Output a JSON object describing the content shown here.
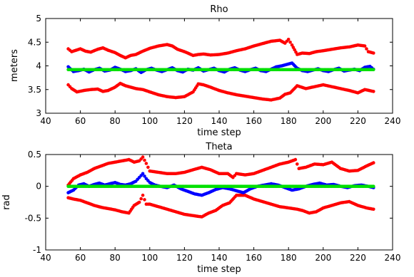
{
  "chart_data": [
    {
      "type": "scatter",
      "title": "Rho",
      "xlabel": "time step",
      "ylabel": "meters",
      "xlim": [
        40,
        240
      ],
      "ylim": [
        3,
        5
      ],
      "xticks": [
        40,
        60,
        80,
        100,
        120,
        140,
        160,
        180,
        200,
        220,
        240
      ],
      "yticks": [
        3,
        3.5,
        4,
        4.5,
        5
      ],
      "ytick_labels": [
        "3",
        "3.5",
        "4",
        "4.5",
        "5"
      ],
      "grid": false,
      "series": [
        {
          "color": "#ff0000",
          "x": [
            53,
            55,
            60,
            63,
            66,
            70,
            73,
            76,
            80,
            83,
            86,
            89,
            92,
            96,
            100,
            105,
            110,
            113,
            116,
            120,
            125,
            128,
            131,
            135,
            140,
            145,
            150,
            155,
            160,
            165,
            170,
            175,
            178,
            180,
            182,
            185,
            188,
            192,
            196,
            200,
            205,
            210,
            215,
            220,
            224,
            226,
            229
          ],
          "y": [
            4.36,
            4.3,
            4.36,
            4.31,
            4.29,
            4.35,
            4.38,
            4.33,
            4.28,
            4.22,
            4.17,
            4.22,
            4.24,
            4.31,
            4.37,
            4.42,
            4.45,
            4.42,
            4.35,
            4.3,
            4.22,
            4.24,
            4.25,
            4.23,
            4.24,
            4.27,
            4.32,
            4.36,
            4.42,
            4.47,
            4.52,
            4.54,
            4.48,
            4.56,
            4.44,
            4.24,
            4.27,
            4.26,
            4.3,
            4.32,
            4.35,
            4.38,
            4.4,
            4.44,
            4.42,
            4.3,
            4.27
          ]
        },
        {
          "color": "#ff0000",
          "x": [
            53,
            55,
            58,
            62,
            66,
            70,
            73,
            76,
            80,
            83,
            86,
            89,
            92,
            96,
            100,
            105,
            110,
            115,
            120,
            125,
            128,
            131,
            135,
            140,
            145,
            150,
            155,
            160,
            165,
            170,
            175,
            178,
            181,
            185,
            190,
            195,
            200,
            205,
            210,
            215,
            220,
            224,
            229
          ],
          "y": [
            3.6,
            3.52,
            3.45,
            3.48,
            3.5,
            3.51,
            3.46,
            3.48,
            3.55,
            3.63,
            3.58,
            3.55,
            3.52,
            3.5,
            3.45,
            3.39,
            3.35,
            3.33,
            3.35,
            3.45,
            3.62,
            3.6,
            3.55,
            3.48,
            3.43,
            3.39,
            3.36,
            3.33,
            3.3,
            3.28,
            3.32,
            3.4,
            3.43,
            3.58,
            3.52,
            3.56,
            3.6,
            3.56,
            3.52,
            3.48,
            3.43,
            3.5,
            3.46
          ]
        },
        {
          "color": "#0000ff",
          "x": [
            53,
            56,
            59,
            62,
            65,
            68,
            71,
            74,
            77,
            80,
            83,
            86,
            89,
            92,
            95,
            98,
            101,
            104,
            107,
            110,
            113,
            116,
            119,
            122,
            125,
            128,
            131,
            134,
            137,
            140,
            143,
            146,
            149,
            152,
            155,
            158,
            161,
            164,
            167,
            170,
            173,
            176,
            179,
            182,
            185,
            188,
            191,
            194,
            197,
            200,
            203,
            206,
            209,
            212,
            215,
            218,
            221,
            224,
            227,
            229
          ],
          "y": [
            3.98,
            3.88,
            3.9,
            3.93,
            3.87,
            3.92,
            3.95,
            3.89,
            3.91,
            3.97,
            3.93,
            3.88,
            3.9,
            3.94,
            3.86,
            3.92,
            3.95,
            3.91,
            3.88,
            3.92,
            3.96,
            3.9,
            3.87,
            3.93,
            3.91,
            3.96,
            3.89,
            3.92,
            3.95,
            3.9,
            3.87,
            3.93,
            3.96,
            3.91,
            3.88,
            3.92,
            3.95,
            3.9,
            3.88,
            3.93,
            3.98,
            4.0,
            4.03,
            4.06,
            3.95,
            3.9,
            3.88,
            3.91,
            3.94,
            3.9,
            3.88,
            3.92,
            3.95,
            3.89,
            3.91,
            3.93,
            3.9,
            3.97,
            3.99,
            3.93
          ]
        },
        {
          "color": "#00e000",
          "x": [
            53,
            229
          ],
          "y": [
            3.92,
            3.92
          ]
        }
      ]
    },
    {
      "type": "scatter",
      "title": "Theta",
      "xlabel": "time step",
      "ylabel": "rad",
      "xlim": [
        40,
        240
      ],
      "ylim": [
        -1,
        0.5
      ],
      "xticks": [
        40,
        60,
        80,
        100,
        120,
        140,
        160,
        180,
        200,
        220,
        240
      ],
      "yticks": [
        -1,
        -0.5,
        0,
        0.5
      ],
      "ytick_labels": [
        "-1",
        "-0.5",
        "0",
        "0.5"
      ],
      "grid": false,
      "series": [
        {
          "color": "#ff0000",
          "x": [
            53,
            56,
            60,
            64,
            68,
            72,
            76,
            80,
            84,
            88,
            91,
            94,
            96,
            98,
            100,
            105,
            110,
            115,
            120,
            125,
            130,
            135,
            140,
            145,
            148,
            150,
            155,
            160,
            165,
            170,
            175,
            180,
            184,
            186,
            190,
            195,
            200,
            205,
            210,
            215,
            220,
            225,
            229
          ],
          "y": [
            0.02,
            0.12,
            0.18,
            0.22,
            0.28,
            0.32,
            0.36,
            0.38,
            0.4,
            0.42,
            0.38,
            0.4,
            0.46,
            0.36,
            0.24,
            0.22,
            0.2,
            0.2,
            0.22,
            0.26,
            0.3,
            0.26,
            0.2,
            0.2,
            0.14,
            0.2,
            0.18,
            0.2,
            0.25,
            0.3,
            0.35,
            0.38,
            0.42,
            0.28,
            0.3,
            0.35,
            0.34,
            0.38,
            0.28,
            0.24,
            0.25,
            0.32,
            0.37
          ]
        },
        {
          "color": "#ff0000",
          "x": [
            53,
            56,
            60,
            64,
            68,
            72,
            76,
            80,
            84,
            88,
            91,
            94,
            96,
            98,
            100,
            105,
            110,
            115,
            120,
            125,
            130,
            134,
            138,
            142,
            146,
            150,
            155,
            160,
            165,
            170,
            175,
            180,
            185,
            188,
            192,
            196,
            200,
            205,
            210,
            215,
            220,
            225,
            229
          ],
          "y": [
            -0.18,
            -0.2,
            -0.22,
            -0.26,
            -0.3,
            -0.33,
            -0.35,
            -0.37,
            -0.4,
            -0.42,
            -0.3,
            -0.25,
            -0.14,
            -0.28,
            -0.28,
            -0.32,
            -0.36,
            -0.4,
            -0.44,
            -0.46,
            -0.48,
            -0.42,
            -0.38,
            -0.3,
            -0.26,
            -0.14,
            -0.14,
            -0.2,
            -0.24,
            -0.28,
            -0.32,
            -0.34,
            -0.36,
            -0.38,
            -0.42,
            -0.4,
            -0.34,
            -0.3,
            -0.26,
            -0.24,
            -0.3,
            -0.34,
            -0.36
          ]
        },
        {
          "color": "#0000ff",
          "x": [
            53,
            56,
            59,
            62,
            65,
            68,
            71,
            74,
            77,
            80,
            83,
            86,
            89,
            92,
            94,
            96,
            98,
            100,
            103,
            106,
            110,
            114,
            118,
            122,
            126,
            130,
            134,
            138,
            142,
            146,
            150,
            154,
            158,
            162,
            166,
            170,
            174,
            178,
            182,
            186,
            190,
            194,
            198,
            202,
            206,
            210,
            214,
            218,
            222,
            226,
            229
          ],
          "y": [
            -0.1,
            -0.06,
            0.02,
            0.04,
            0.0,
            0.03,
            0.05,
            0.02,
            0.04,
            0.06,
            0.03,
            0.02,
            0.04,
            0.08,
            0.14,
            0.2,
            0.12,
            0.06,
            0.02,
            0.0,
            -0.02,
            0.02,
            -0.04,
            -0.08,
            -0.12,
            -0.14,
            -0.1,
            -0.05,
            -0.02,
            -0.04,
            -0.07,
            -0.1,
            -0.04,
            0.0,
            0.02,
            0.04,
            0.02,
            -0.02,
            -0.06,
            -0.04,
            0.0,
            0.03,
            0.05,
            0.02,
            0.03,
            0.0,
            -0.02,
            0.01,
            0.02,
            0.0,
            -0.02
          ]
        },
        {
          "color": "#00e000",
          "x": [
            53,
            229
          ],
          "y": [
            0.0,
            0.0
          ]
        }
      ]
    }
  ]
}
